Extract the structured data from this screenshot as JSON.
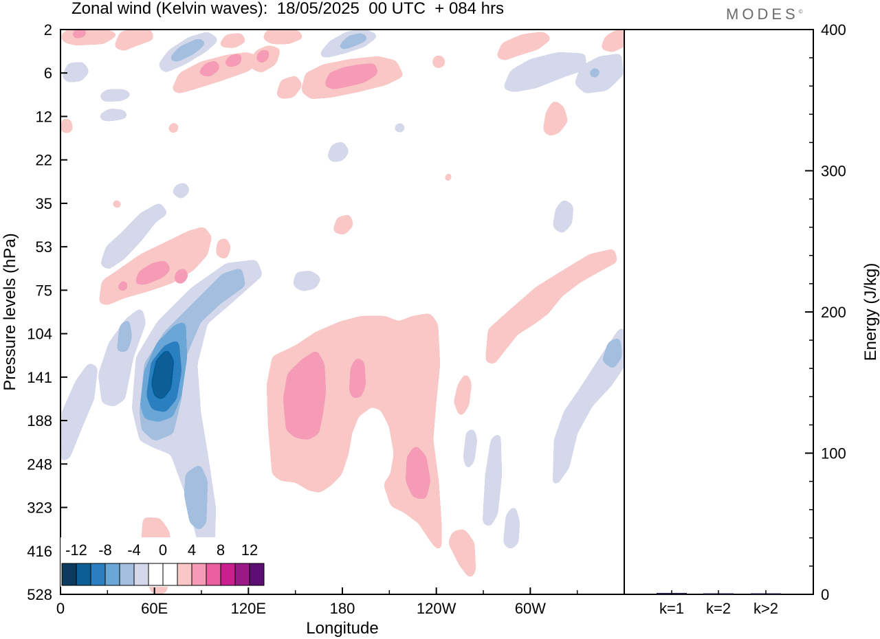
{
  "brand": "MODES",
  "chart_data": {
    "type": "heatmap",
    "title": "Zonal wind (Kelvin waves):  18/05/2025  00 UTC  + 084 hrs",
    "xlabel": "Longitude",
    "ylabel": "Pressure levels (hPa)",
    "x_ticks": [
      "0",
      "60E",
      "120E",
      "180",
      "120W",
      "60W"
    ],
    "y_ticks": [
      "2",
      "6",
      "12",
      "22",
      "35",
      "53",
      "75",
      "104",
      "141",
      "188",
      "248",
      "323",
      "416",
      "528"
    ],
    "colorbar": {
      "labels": [
        "-12",
        "-8",
        "-4",
        "0",
        "4",
        "8",
        "12"
      ],
      "colors": [
        "#0d3b5e",
        "#0b5d96",
        "#2b7fc0",
        "#6aa6d6",
        "#a3bedf",
        "#d4d8ea",
        "#ffffff",
        "#ffffff",
        "#f9c7c6",
        "#f59bb6",
        "#ea5fa0",
        "#cc1f8f",
        "#991a85",
        "#5c0d74"
      ]
    },
    "features": [
      {
        "sign": "negative",
        "peak": -12,
        "x_range": [
          "40E",
          "90E"
        ],
        "p_range": [
          75,
          248
        ]
      },
      {
        "sign": "negative",
        "peak": -6,
        "x_range": [
          "80E",
          "100E"
        ],
        "p_range": [
          248,
          416
        ]
      },
      {
        "sign": "positive",
        "peak": 6,
        "x_range": [
          "135E",
          "125W"
        ],
        "p_range": [
          104,
          416
        ]
      },
      {
        "sign": "positive",
        "peak": 6,
        "x_range": [
          "25E",
          "100E"
        ],
        "p_range": [
          53,
          104
        ]
      },
      {
        "sign": "positive",
        "peak": 6,
        "x_range": [
          "170E",
          "150W"
        ],
        "p_range": [
          2,
          12
        ]
      },
      {
        "sign": "negative",
        "peak": -6,
        "x_range": [
          "50E",
          "95E"
        ],
        "p_range": [
          2,
          12
        ]
      },
      {
        "sign": "negative",
        "peak": -6,
        "x_range": [
          "75W",
          "0"
        ],
        "p_range": [
          104,
          323
        ]
      }
    ],
    "side_panel": {
      "type": "bar",
      "ylabel": "Energy (J/kg)",
      "ylim": [
        0,
        400
      ],
      "y_ticks": [
        "0",
        "100",
        "200",
        "300",
        "400"
      ],
      "categories": [
        "k=1",
        "k=2",
        "k>2"
      ],
      "values": [
        1.0,
        0.3,
        0.6
      ]
    }
  }
}
